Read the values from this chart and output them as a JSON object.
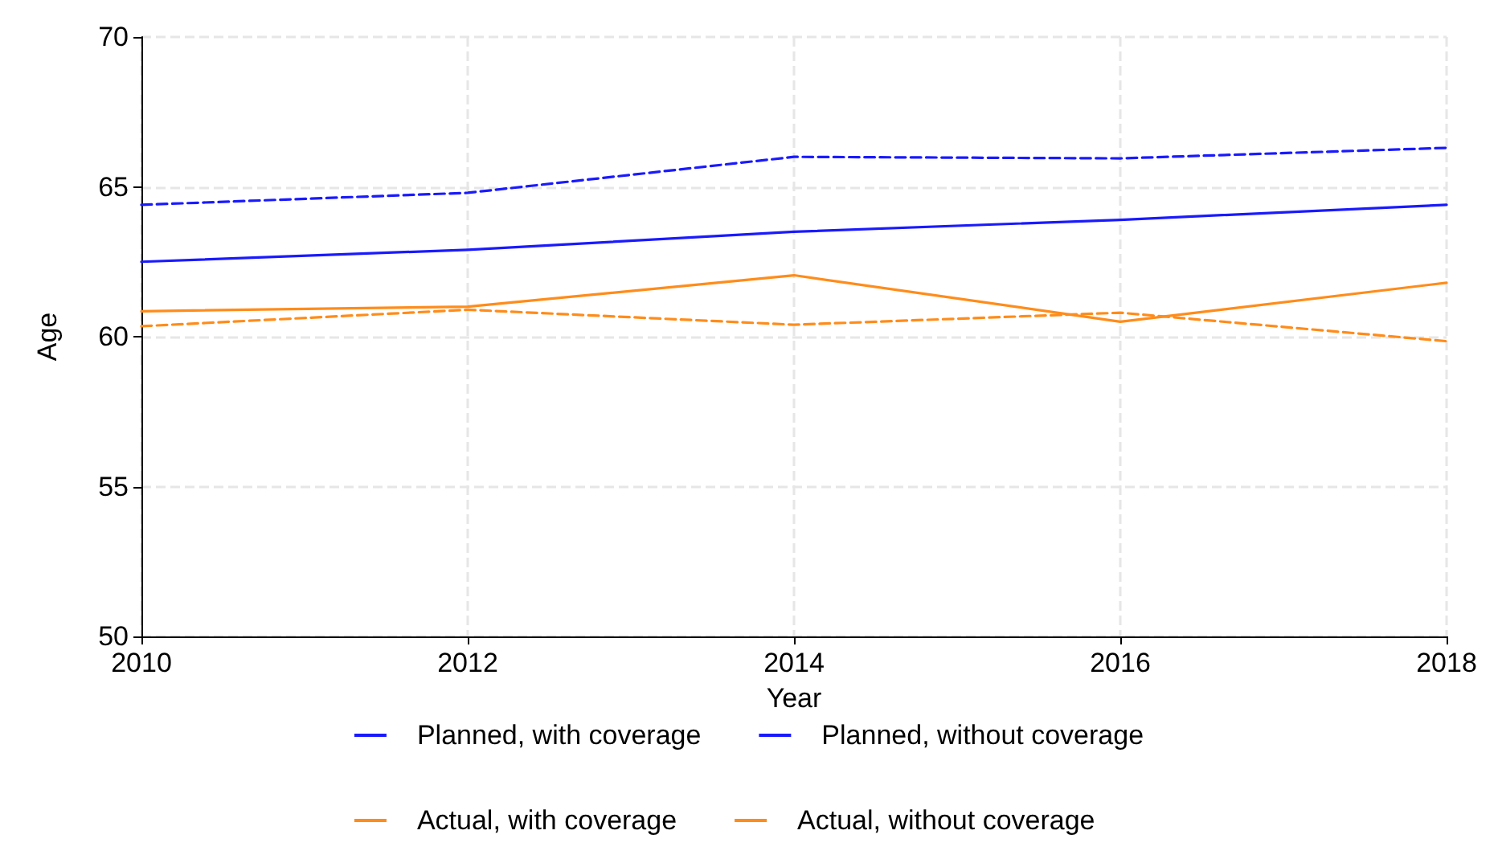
{
  "chart_data": {
    "type": "line",
    "xlabel": "Year",
    "ylabel": "Age",
    "x": [
      2010,
      2012,
      2014,
      2016,
      2018
    ],
    "xlim": [
      2010,
      2018
    ],
    "xticks": [
      2010,
      2012,
      2014,
      2016,
      2018
    ],
    "ylim": [
      50,
      70
    ],
    "yticks": [
      50,
      55,
      60,
      65,
      70
    ],
    "grid": true,
    "legend": "bottom",
    "marker": "none",
    "series": [
      {
        "name": "Planned, with coverage",
        "color": "#1a1aff",
        "line_style": "solid",
        "values": [
          62.5,
          62.9,
          63.5,
          63.9,
          64.4
        ]
      },
      {
        "name": "Planned, without coverage",
        "color": "#1a1aff",
        "line_style": "dashed",
        "values": [
          64.4,
          64.8,
          66.0,
          65.95,
          66.3
        ]
      },
      {
        "name": "Actual, with coverage",
        "color": "#ff8c1a",
        "line_style": "solid",
        "values": [
          60.85,
          61.0,
          62.05,
          60.5,
          61.8
        ]
      },
      {
        "name": "Actual, without coverage",
        "color": "#ff8c1a",
        "line_style": "dashed",
        "values": [
          60.35,
          60.9,
          60.4,
          60.8,
          59.85
        ]
      }
    ]
  }
}
